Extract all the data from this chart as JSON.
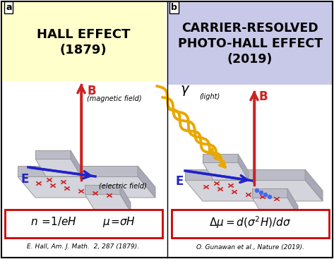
{
  "panel_a_title": "HALL EFFECT\n(1879)",
  "panel_b_title": "CARRIER-RESOLVED\nPHOTO-HALL EFFECT\n(2019)",
  "panel_a_bg": "#ffffcc",
  "panel_b_bg": "#c8c8e8",
  "ref_a": "E. Hall, Am. J. Math.  2, 287 (1879).",
  "ref_b": "O. Gunawan et al., Nature (2019).",
  "formula_border": "#cc0000",
  "label_a": "a",
  "label_b": "b",
  "bar_top_color": "#d4d4dc",
  "bar_side_color": "#b8b8c4",
  "bar_dark_color": "#a0a0b0",
  "x_color": "#cc2222",
  "B_color": "#cc2222",
  "E_color": "#2222cc",
  "light_color": "#e8a800"
}
